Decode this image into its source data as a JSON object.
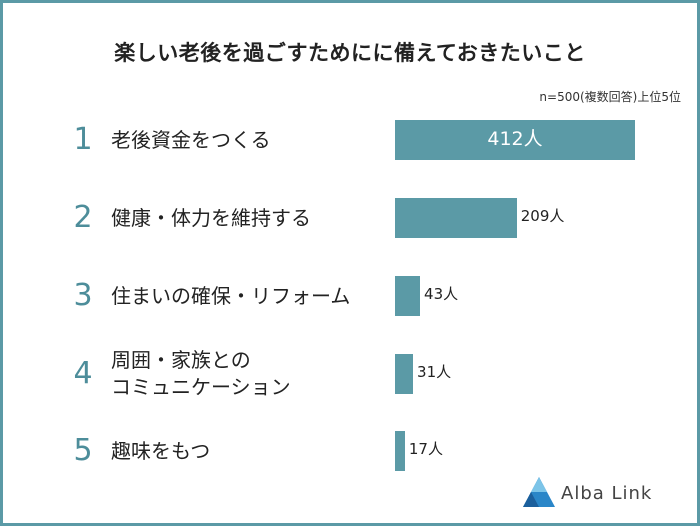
{
  "chart_data": {
    "type": "bar",
    "title": "楽しい老後を過ごすためにに備えておきたいこと",
    "note": "n=500(複数回答)上位5位",
    "unit": "人",
    "categories": [
      {
        "rank": "1",
        "lines": [
          "老後資金をつくる"
        ]
      },
      {
        "rank": "2",
        "lines": [
          "健康・体力を維持する"
        ]
      },
      {
        "rank": "3",
        "lines": [
          "住まいの確保・リフォーム"
        ]
      },
      {
        "rank": "4",
        "lines": [
          "周囲・家族との",
          "コミュニケーション"
        ]
      },
      {
        "rank": "5",
        "lines": [
          "趣味をもつ"
        ]
      }
    ],
    "values": [
      412,
      209,
      43,
      31,
      17
    ],
    "value_labels": [
      "412人",
      "209人",
      "43人",
      "31人",
      "17人"
    ],
    "xlim": [
      0,
      412
    ],
    "color": "#5b9aa6"
  },
  "brand": {
    "name": "Alba Link"
  }
}
